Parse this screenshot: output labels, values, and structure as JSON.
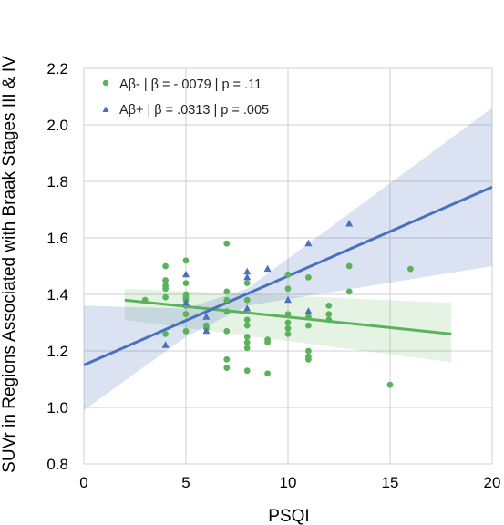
{
  "chart_data": {
    "type": "scatter",
    "title": "",
    "xlabel": "PSQI",
    "ylabel": "SUVr in Regions Associated with Braak Stages III & IV",
    "xlim": [
      0,
      20
    ],
    "ylim": [
      0.8,
      2.2
    ],
    "x_ticks": [
      "0",
      "5",
      "10",
      "15",
      "20"
    ],
    "y_ticks": [
      "0.8",
      "1.0",
      "1.2",
      "1.4",
      "1.6",
      "1.8",
      "2.0",
      "2.2"
    ],
    "grid": true,
    "legend_position": "top-left",
    "series": [
      {
        "name": "Aβ- | β = -.0079 | p = .11",
        "color": "#5cb25c",
        "marker": "circle",
        "points": [
          [
            3,
            1.38
          ],
          [
            4,
            1.5
          ],
          [
            4,
            1.45
          ],
          [
            4,
            1.43
          ],
          [
            4,
            1.42
          ],
          [
            4,
            1.39
          ],
          [
            4,
            1.26
          ],
          [
            5,
            1.52
          ],
          [
            5,
            1.44
          ],
          [
            5,
            1.4
          ],
          [
            5,
            1.39
          ],
          [
            5,
            1.38
          ],
          [
            5,
            1.36
          ],
          [
            5,
            1.33
          ],
          [
            5,
            1.27
          ],
          [
            6,
            1.29
          ],
          [
            6,
            1.28
          ],
          [
            7,
            1.58
          ],
          [
            7,
            1.41
          ],
          [
            7,
            1.38
          ],
          [
            7,
            1.34
          ],
          [
            7,
            1.27
          ],
          [
            7,
            1.17
          ],
          [
            7,
            1.14
          ],
          [
            8,
            1.44
          ],
          [
            8,
            1.38
          ],
          [
            8,
            1.31
          ],
          [
            8,
            1.29
          ],
          [
            8,
            1.25
          ],
          [
            8,
            1.23
          ],
          [
            8,
            1.21
          ],
          [
            8,
            1.13
          ],
          [
            9,
            1.24
          ],
          [
            9,
            1.23
          ],
          [
            9,
            1.12
          ],
          [
            10,
            1.47
          ],
          [
            10,
            1.42
          ],
          [
            10,
            1.33
          ],
          [
            10,
            1.3
          ],
          [
            10,
            1.28
          ],
          [
            10,
            1.26
          ],
          [
            11,
            1.46
          ],
          [
            11,
            1.32
          ],
          [
            11,
            1.29
          ],
          [
            11,
            1.2
          ],
          [
            11,
            1.18
          ],
          [
            11,
            1.17
          ],
          [
            12,
            1.36
          ],
          [
            12,
            1.33
          ],
          [
            12,
            1.31
          ],
          [
            13,
            1.5
          ],
          [
            13,
            1.41
          ],
          [
            15,
            1.08
          ],
          [
            16,
            1.49
          ]
        ],
        "fit_line": [
          [
            2,
            1.38
          ],
          [
            18,
            1.26
          ]
        ],
        "ci_band": {
          "x": [
            2,
            18
          ],
          "upper": [
            1.42,
            1.37
          ],
          "lower": [
            1.31,
            1.16
          ]
        }
      },
      {
        "name": "Aβ+ | β = .0313 | p = .005",
        "color": "#4a70c0",
        "marker": "triangle",
        "points": [
          [
            4,
            1.22
          ],
          [
            5,
            1.47
          ],
          [
            5,
            1.37
          ],
          [
            6,
            1.32
          ],
          [
            6,
            1.27
          ],
          [
            8,
            1.48
          ],
          [
            8,
            1.46
          ],
          [
            8,
            1.35
          ],
          [
            9,
            1.49
          ],
          [
            10,
            1.38
          ],
          [
            11,
            1.58
          ],
          [
            11,
            1.34
          ],
          [
            13,
            1.65
          ]
        ],
        "fit_line": [
          [
            0,
            1.15
          ],
          [
            20,
            1.78
          ]
        ],
        "ci_band": {
          "x": [
            0,
            5,
            8,
            20
          ],
          "upper": [
            1.36,
            1.35,
            1.42,
            2.06
          ],
          "lower": [
            0.99,
            1.25,
            1.36,
            1.5
          ]
        }
      }
    ]
  }
}
